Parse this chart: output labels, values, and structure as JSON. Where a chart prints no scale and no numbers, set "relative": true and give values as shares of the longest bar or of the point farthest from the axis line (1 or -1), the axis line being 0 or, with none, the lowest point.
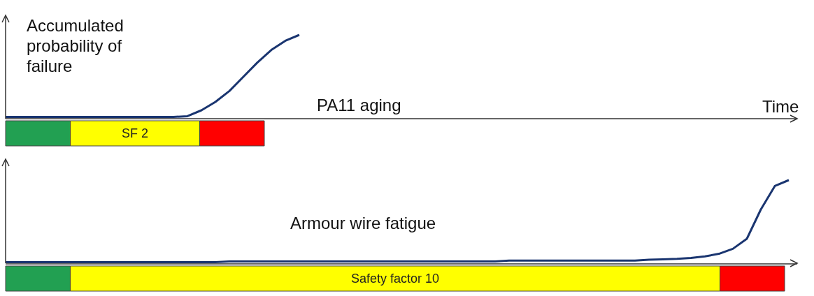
{
  "chart_data": [
    {
      "type": "line",
      "relative": true,
      "marker": "none",
      "ylabel": "Accumulated probability of failure",
      "xlabel": "Time",
      "annotations": [
        "PA11 aging"
      ],
      "categories": [
        null,
        null,
        null,
        null,
        null,
        null,
        null,
        null,
        null,
        null,
        null,
        null,
        null,
        null,
        null,
        null,
        null,
        null,
        null,
        null,
        null,
        null,
        null,
        null,
        null,
        null,
        null,
        null,
        null,
        null,
        null,
        null,
        null,
        null,
        null,
        null,
        null,
        null,
        null,
        null,
        null,
        null,
        null,
        null,
        null,
        null,
        null,
        null,
        null,
        null,
        null,
        null,
        null,
        null,
        null,
        null,
        null
      ],
      "series": [
        {
          "color": "#1a3570",
          "values": [
            0.02,
            0.02,
            0.02,
            0.02,
            0.02,
            0.02,
            0.02,
            0.02,
            0.02,
            0.02,
            0.02,
            0.02,
            0.02,
            0.03,
            0.1,
            0.2,
            0.33,
            0.5,
            0.67,
            0.82,
            0.93,
            1,
            null,
            null,
            null,
            null,
            null,
            null,
            null,
            null,
            null,
            null,
            null,
            null,
            null,
            null,
            null,
            null,
            null,
            null,
            null,
            null,
            null,
            null,
            null,
            null,
            null,
            null,
            null,
            null,
            null,
            null,
            null,
            null,
            null,
            null,
            null
          ]
        }
      ]
    },
    {
      "type": "bar",
      "orientation": "horizontal",
      "stacked": true,
      "relative": true,
      "categories": [
        null
      ],
      "series": [
        {
          "color": "#22a052",
          "values": [
            0.25
          ]
        },
        {
          "name": "SF 2",
          "color": "#ffff00",
          "values": [
            0.5
          ]
        },
        {
          "color": "#ff0000",
          "values": [
            0.25
          ]
        }
      ]
    },
    {
      "type": "line",
      "relative": true,
      "marker": "none",
      "annotations": [
        "Armour wire fatigue"
      ],
      "categories": [
        null,
        null,
        null,
        null,
        null,
        null,
        null,
        null,
        null,
        null,
        null,
        null,
        null,
        null,
        null,
        null,
        null,
        null,
        null,
        null,
        null,
        null,
        null,
        null,
        null,
        null,
        null,
        null,
        null,
        null,
        null,
        null,
        null,
        null,
        null,
        null,
        null,
        null,
        null,
        null,
        null,
        null,
        null,
        null,
        null,
        null,
        null,
        null,
        null,
        null,
        null,
        null,
        null,
        null,
        null,
        null,
        null
      ],
      "series": [
        {
          "color": "#1a3570",
          "values": [
            0.02,
            0.02,
            0.02,
            0.02,
            0.02,
            0.02,
            0.02,
            0.02,
            0.02,
            0.02,
            0.02,
            0.02,
            0.02,
            0.02,
            0.02,
            0.02,
            0.03,
            0.03,
            0.03,
            0.03,
            0.03,
            0.03,
            0.03,
            0.03,
            0.03,
            0.03,
            0.03,
            0.03,
            0.03,
            0.03,
            0.03,
            0.03,
            0.03,
            0.03,
            0.03,
            0.03,
            0.04,
            0.04,
            0.04,
            0.04,
            0.04,
            0.04,
            0.04,
            0.04,
            0.04,
            0.04,
            0.05,
            0.055,
            0.06,
            0.07,
            0.09,
            0.12,
            0.18,
            0.3,
            0.65,
            0.93,
            1
          ]
        }
      ]
    },
    {
      "type": "bar",
      "orientation": "horizontal",
      "stacked": true,
      "relative": true,
      "categories": [
        null
      ],
      "series": [
        {
          "color": "#22a052",
          "values": [
            0.083
          ]
        },
        {
          "name": "Safety factor 10",
          "color": "#ffff00",
          "values": [
            0.834
          ]
        },
        {
          "color": "#ff0000",
          "values": [
            0.083
          ]
        }
      ]
    }
  ]
}
